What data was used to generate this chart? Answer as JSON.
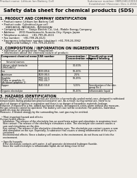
{
  "bg_color": "#f0ede8",
  "text_color": "#1a1a1a",
  "header_left": "Product name: Lithium Ion Battery Cell",
  "header_right1": "Substance number: 08M-040-00010",
  "header_right2": "Established / Revision: Dec.1.2016",
  "title": "Safety data sheet for chemical products (SDS)",
  "s1_title": "1. PRODUCT AND COMPANY IDENTIFICATION",
  "s1_lines": [
    "  • Product name: Lithium Ion Battery Cell",
    "  • Product code: Cylindrical-type cell",
    "       (INR18650J, INR18650L, INR18650A)",
    "  • Company name:     Sanyo Electric Co., Ltd., Mobile Energy Company",
    "  • Address:     2001 Kamikamachi, Sumoto-City, Hyogo, Japan",
    "  • Telephone number:    +81-799-26-4111",
    "  • Fax number:    +81-799-26-4121",
    "  • Emergency telephone number (daytime): +81-799-26-3962",
    "       (Night and holiday): +81-799-26-4101"
  ],
  "s2_title": "2. COMPOSITION / INFORMATION ON INGREDIENTS",
  "s2_sub1": "  • Substance or preparation: Preparation",
  "s2_sub2": "  • Information about the chemical nature of product:",
  "th_component": "Component chemical name",
  "th_several": "Several names",
  "th_cas": "CAS number",
  "th_conc": "Concentration /",
  "th_conc2": "Concentration range",
  "th_class": "Classification and",
  "th_class2": "hazard labeling",
  "table_rows": [
    [
      "Lithium cobalt tentacle",
      "(LiMnCoNiO₂)",
      "-",
      "30-60%",
      "-"
    ],
    [
      "Iron",
      "",
      "7439-89-6",
      "10-20%",
      "-"
    ],
    [
      "Aluminum",
      "",
      "7429-90-5",
      "2-5%",
      "-"
    ],
    [
      "Graphite",
      "(Flake or graphite-1)\n(Air-blown graphite-1)",
      "7782-42-5\n7782-44-7",
      "10-25%",
      "-"
    ],
    [
      "Copper",
      "",
      "7440-50-8",
      "5-15%",
      "Sensitization of the skin\ngroup No.2"
    ],
    [
      "Organic electrolyte",
      "",
      "-",
      "10-20%",
      "Inflammable liquid"
    ]
  ],
  "s3_title": "3. HAZARDS IDENTIFICATION",
  "s3_lines": [
    "For this battery cell, chemical materials are stored in a hermetically sealed metal case, designed to withstand",
    "temperatures during production process/consumer use. As a result, during normal use, there is no",
    "physical danger of ignition or aspiration and there is no danger of hazardous materials leakage.",
    "However, if exposed to a fire, added mechanical shocks, decomposed, errors alarm without any measure,",
    "the gas releases cannot be operated. The battery cell case will be scratched. Fire particles, hazardous",
    "materials may be released.",
    "Moreover, if heated strongly by the surrounding fire, soot gas may be emitted.",
    "",
    "  • Most important hazard and effects:",
    "Human health effects:",
    "    Inhalation: The release of the electrolyte has an anesthesia action and stimulates in respiratory tract.",
    "    Skin contact: The release of the electrolyte stimulates a skin. The electrolyte skin contact causes a",
    "    sore and stimulation on the skin.",
    "    Eye contact: The release of the electrolyte stimulates eyes. The electrolyte eye contact causes a sore",
    "    and stimulation on the eye. Especially, a substance that causes a strong inflammation of the eyes is",
    "    contained.",
    "    Environmental effects: Since a battery cell remains in the environment, do not throw out it into the",
    "    environment.",
    "",
    "  • Specific hazards:",
    "    If the electrolyte contacts with water, it will generate detrimental hydrogen fluoride.",
    "    Since the said electrolyte is inflammable liquid, do not bring close to fire."
  ],
  "footer_line": true
}
